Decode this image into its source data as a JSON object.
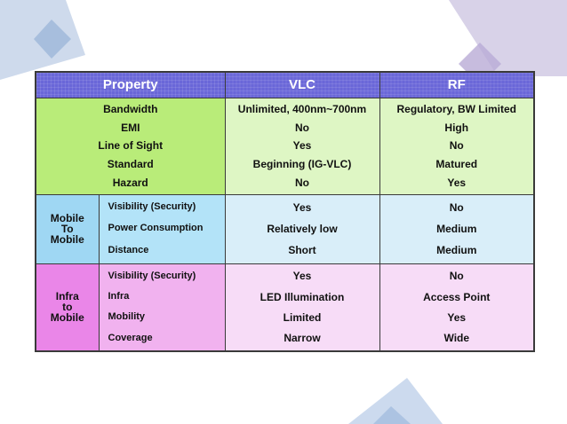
{
  "table": {
    "headers": {
      "property": "Property",
      "vlc": "VLC",
      "rf": "RF"
    },
    "general": {
      "labels": [
        "Bandwidth",
        "EMI",
        "Line of Sight",
        "Standard",
        "Hazard"
      ],
      "vlc": [
        "Unlimited, 400nm~700nm",
        "No",
        "Yes",
        "Beginning (IG-VLC)",
        "No"
      ],
      "rf": [
        "Regulatory, BW Limited",
        "High",
        "No",
        "Matured",
        "Yes"
      ]
    },
    "mobile_to_mobile": {
      "category": [
        "Mobile",
        "To",
        "Mobile"
      ],
      "labels": [
        "Visibility (Security)",
        "Power Consumption",
        "Distance"
      ],
      "vlc": [
        "Yes",
        "Relatively low",
        "Short"
      ],
      "rf": [
        "No",
        "Medium",
        "Medium"
      ]
    },
    "infra_to_mobile": {
      "category": [
        "Infra",
        "to",
        "Mobile"
      ],
      "labels": [
        "Visibility (Security)",
        "Infra",
        "Mobility",
        "Coverage"
      ],
      "vlc": [
        "Yes",
        "LED Illumination",
        "Limited",
        "Narrow"
      ],
      "rf": [
        "No",
        "Access Point",
        "Yes",
        "Wide"
      ]
    }
  },
  "colors": {
    "header": "#6a67d8",
    "green_label": "#b9ec79",
    "green_value": "#def6c4",
    "blue_category": "#9fd7f3",
    "blue_value": "#d9eef9",
    "pink_category": "#ea86e8",
    "pink_value": "#f7dcf7"
  }
}
